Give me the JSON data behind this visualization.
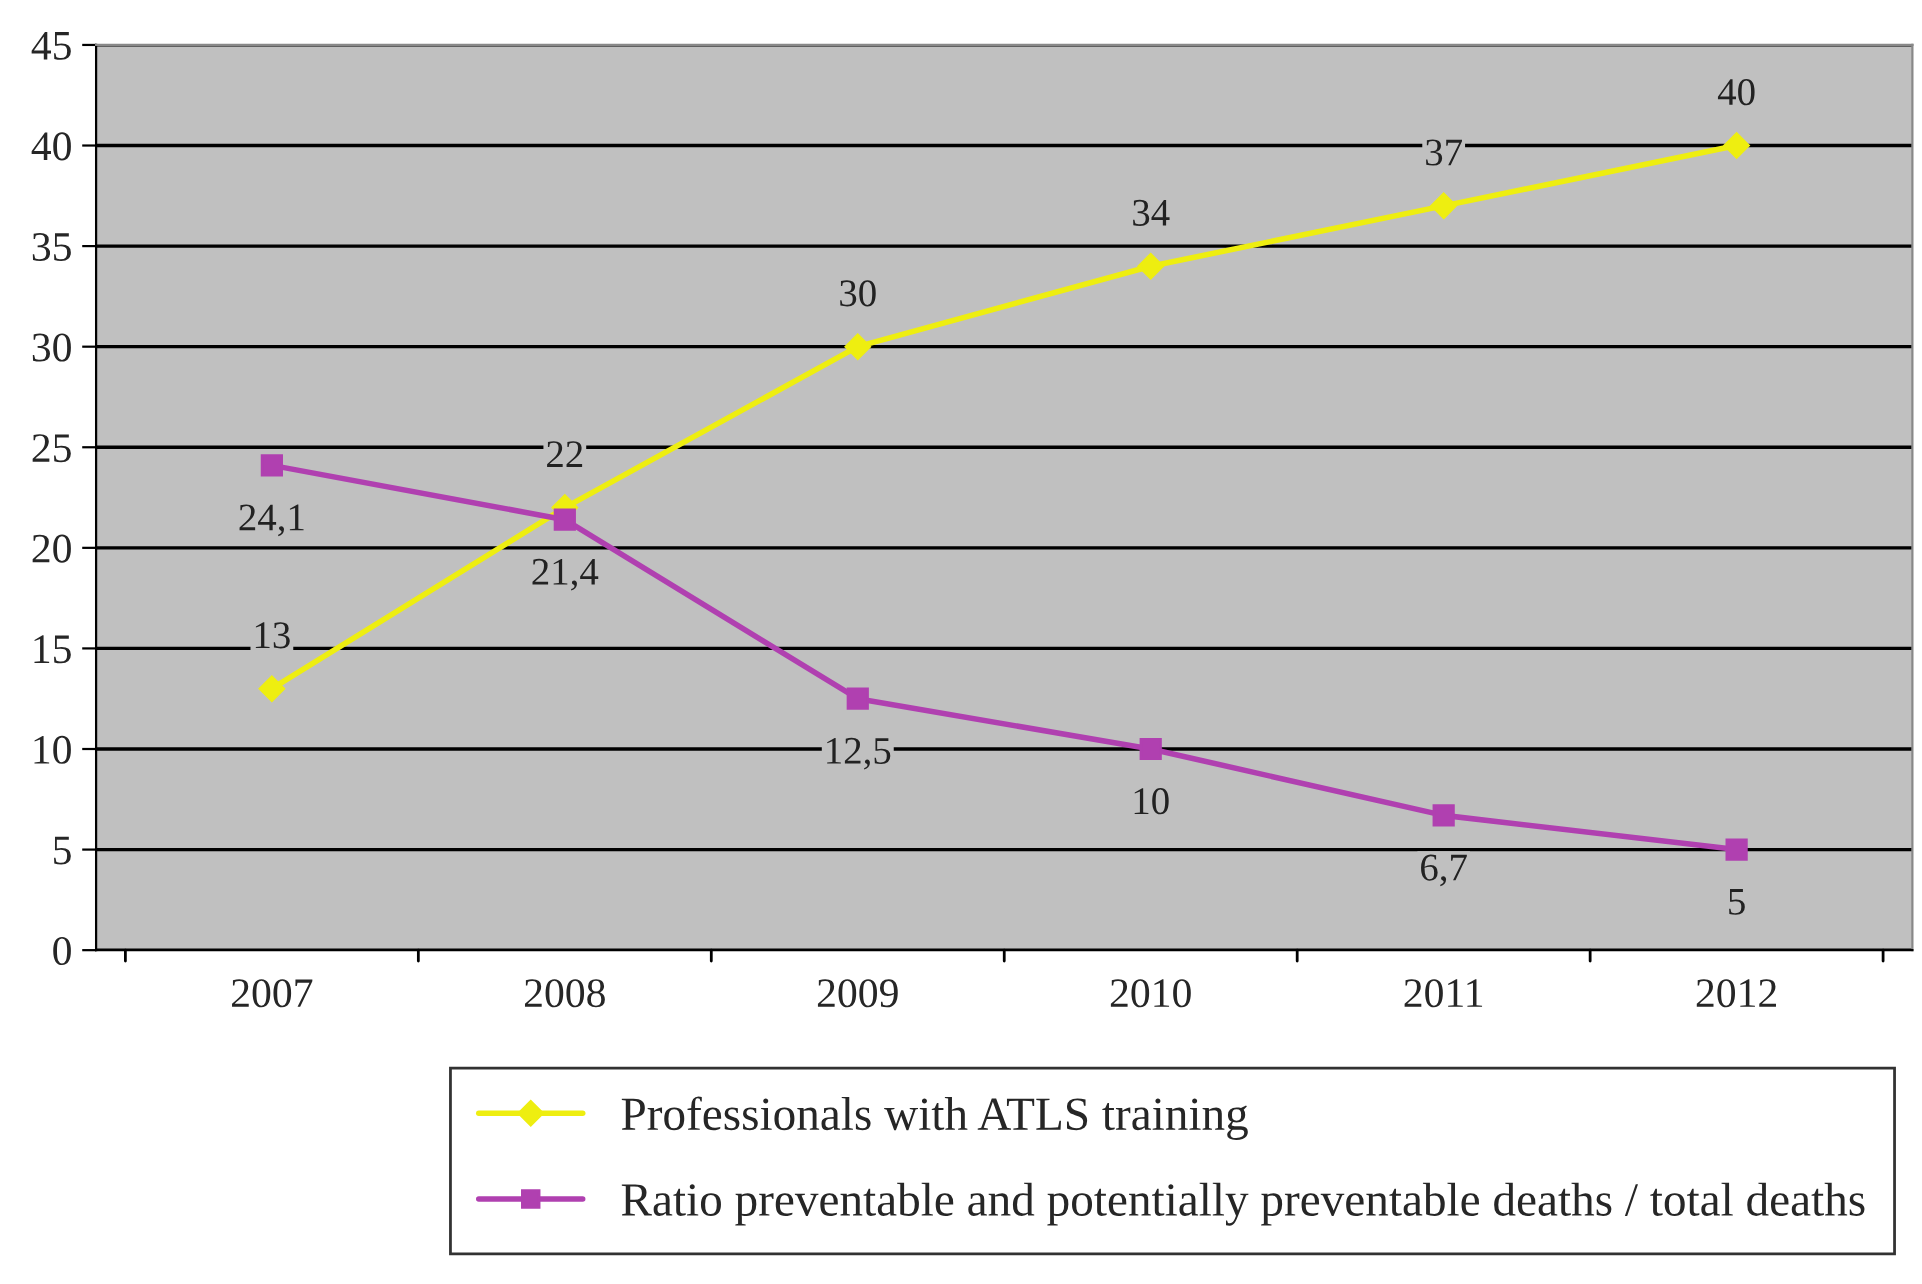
{
  "chart_data": {
    "type": "line",
    "categories": [
      "2007",
      "2008",
      "2009",
      "2010",
      "2011",
      "2012"
    ],
    "series": [
      {
        "name": "Professionals with ATLS training",
        "color": "#eeee10",
        "marker": "diamond",
        "values": [
          13,
          22,
          30,
          34,
          37,
          40
        ]
      },
      {
        "name": "Ratio preventable and potentially preventable deaths / total deaths",
        "color": "#b040b0",
        "marker": "square",
        "value_labels": [
          "24,1",
          "21,4",
          "12,5",
          "10",
          "6,7",
          "5"
        ],
        "values": [
          24.1,
          21.4,
          12.5,
          10,
          6.7,
          5
        ]
      }
    ],
    "ylim": [
      0,
      45
    ],
    "yticks": [
      0,
      5,
      10,
      15,
      20,
      25,
      30,
      35,
      40,
      45
    ],
    "grid": "y",
    "data_labels": true,
    "legend": "bottom",
    "line_style": "solid"
  }
}
